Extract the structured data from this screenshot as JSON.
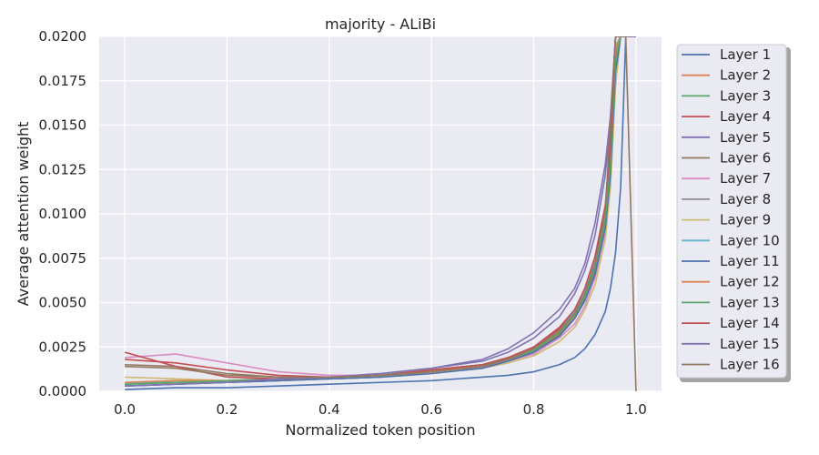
{
  "chart_data": {
    "type": "line",
    "title": "majority - ALiBi",
    "xlabel": "Normalized token position",
    "ylabel": "Average attention weight",
    "xlim": [
      -0.05,
      1.05
    ],
    "ylim": [
      0,
      0.02
    ],
    "xticks": [
      0.0,
      0.2,
      0.4,
      0.6,
      0.8,
      1.0
    ],
    "xtick_labels": [
      "0.0",
      "0.2",
      "0.4",
      "0.6",
      "0.8",
      "1.0"
    ],
    "yticks": [
      0,
      0.0025,
      0.005,
      0.0075,
      0.01,
      0.0125,
      0.015,
      0.0175,
      0.02
    ],
    "ytick_labels": [
      "0.0000",
      "0.0025",
      "0.0050",
      "0.0075",
      "0.0100",
      "0.0125",
      "0.0150",
      "0.0175",
      "0.0200"
    ],
    "grid": true,
    "legend_position": "outside-right",
    "x": [
      0.0,
      0.1,
      0.2,
      0.3,
      0.4,
      0.5,
      0.6,
      0.7,
      0.75,
      0.8,
      0.85,
      0.88,
      0.9,
      0.92,
      0.94,
      0.95,
      0.96,
      0.97,
      0.98,
      1.0
    ],
    "series": [
      {
        "name": "Layer 1",
        "color": "#4c72b0",
        "values": [
          0.0001,
          0.0002,
          0.0002,
          0.0003,
          0.0004,
          0.0005,
          0.0006,
          0.0008,
          0.0009,
          0.0011,
          0.0015,
          0.0019,
          0.0024,
          0.0032,
          0.0045,
          0.0058,
          0.0078,
          0.0115,
          0.02,
          0.02
        ]
      },
      {
        "name": "Layer 2",
        "color": "#dd8452",
        "values": [
          0.0005,
          0.0006,
          0.0006,
          0.0007,
          0.0008,
          0.0009,
          0.0011,
          0.0014,
          0.0018,
          0.0022,
          0.0032,
          0.0042,
          0.0052,
          0.0068,
          0.0095,
          0.0125,
          0.0185,
          0.02,
          0.02,
          0.02
        ]
      },
      {
        "name": "Layer 3",
        "color": "#55a868",
        "values": [
          0.0004,
          0.0005,
          0.0006,
          0.0007,
          0.0008,
          0.0009,
          0.0012,
          0.0015,
          0.0019,
          0.0024,
          0.0033,
          0.0044,
          0.0055,
          0.0072,
          0.0098,
          0.0132,
          0.019,
          0.02,
          0.02,
          0.02
        ]
      },
      {
        "name": "Layer 4",
        "color": "#c44e52",
        "values": [
          0.0018,
          0.0016,
          0.0012,
          0.0009,
          0.0008,
          0.0009,
          0.0012,
          0.0015,
          0.0019,
          0.0025,
          0.0035,
          0.0046,
          0.0058,
          0.0076,
          0.0105,
          0.014,
          0.02,
          0.02,
          0.02,
          0.02
        ]
      },
      {
        "name": "Layer 5",
        "color": "#8172b3",
        "values": [
          0.0003,
          0.0004,
          0.0005,
          0.0006,
          0.0008,
          0.001,
          0.0013,
          0.0017,
          0.0022,
          0.003,
          0.0042,
          0.0055,
          0.0068,
          0.0088,
          0.0122,
          0.015,
          0.02,
          0.02,
          0.02,
          0.02
        ]
      },
      {
        "name": "Layer 6",
        "color": "#937860",
        "values": [
          0.0015,
          0.0014,
          0.001,
          0.0008,
          0.0007,
          0.0008,
          0.001,
          0.0013,
          0.0017,
          0.0022,
          0.0032,
          0.0041,
          0.0052,
          0.0068,
          0.0098,
          0.0148,
          0.02,
          0.02,
          0.02,
          0.02
        ]
      },
      {
        "name": "Layer 7",
        "color": "#da8bc3",
        "values": [
          0.0019,
          0.0021,
          0.0016,
          0.0011,
          0.0009,
          0.0009,
          0.0011,
          0.0014,
          0.0017,
          0.0021,
          0.003,
          0.0038,
          0.0048,
          0.0064,
          0.009,
          0.0122,
          0.0182,
          0.02,
          0.02,
          0.02
        ]
      },
      {
        "name": "Layer 8",
        "color": "#8c8c8c",
        "values": [
          0.0004,
          0.0005,
          0.0005,
          0.0006,
          0.0007,
          0.0008,
          0.0011,
          0.0014,
          0.0018,
          0.0023,
          0.0033,
          0.0043,
          0.0054,
          0.007,
          0.0097,
          0.0128,
          0.0188,
          0.02,
          0.02,
          0.02
        ]
      },
      {
        "name": "Layer 9",
        "color": "#ccb974",
        "values": [
          0.0008,
          0.0007,
          0.0006,
          0.0006,
          0.0007,
          0.0008,
          0.001,
          0.0013,
          0.0016,
          0.002,
          0.0028,
          0.0036,
          0.0046,
          0.006,
          0.0086,
          0.0115,
          0.0172,
          0.02,
          0.02,
          0.02
        ]
      },
      {
        "name": "Layer 10",
        "color": "#64b5cd",
        "values": [
          0.0005,
          0.0005,
          0.0006,
          0.0007,
          0.0008,
          0.0009,
          0.0012,
          0.0015,
          0.0019,
          0.0024,
          0.0034,
          0.0045,
          0.0057,
          0.0074,
          0.0102,
          0.0135,
          0.0195,
          0.02,
          0.02,
          0.02
        ]
      },
      {
        "name": "Layer 11",
        "color": "#4c72b0",
        "values": [
          0.0003,
          0.0004,
          0.0005,
          0.0006,
          0.0007,
          0.0008,
          0.001,
          0.0013,
          0.0017,
          0.0022,
          0.0031,
          0.0041,
          0.0051,
          0.0066,
          0.0092,
          0.0122,
          0.018,
          0.02,
          0.02,
          0.02
        ]
      },
      {
        "name": "Layer 12",
        "color": "#dd8452",
        "values": [
          0.0005,
          0.0006,
          0.0006,
          0.0007,
          0.0008,
          0.0009,
          0.0011,
          0.0015,
          0.0018,
          0.0023,
          0.0033,
          0.0043,
          0.0054,
          0.0071,
          0.0099,
          0.0133,
          0.0193,
          0.02,
          0.02,
          0.02
        ]
      },
      {
        "name": "Layer 13",
        "color": "#55a868",
        "values": [
          0.0004,
          0.0005,
          0.0006,
          0.0007,
          0.0008,
          0.0009,
          0.0012,
          0.0015,
          0.0018,
          0.0023,
          0.0033,
          0.0043,
          0.0053,
          0.007,
          0.0097,
          0.0128,
          0.0187,
          0.02,
          0.02,
          0.02
        ]
      },
      {
        "name": "Layer 14",
        "color": "#c44e52",
        "values": [
          0.0022,
          0.0014,
          0.0008,
          0.0007,
          0.0008,
          0.0009,
          0.0012,
          0.0015,
          0.0019,
          0.0025,
          0.0036,
          0.0046,
          0.0058,
          0.0076,
          0.0104,
          0.0138,
          0.02,
          0.02,
          0.02,
          0.02
        ]
      },
      {
        "name": "Layer 15",
        "color": "#8172b3",
        "values": [
          0.0003,
          0.0004,
          0.0005,
          0.0007,
          0.0008,
          0.001,
          0.0013,
          0.0018,
          0.0024,
          0.0033,
          0.0046,
          0.0058,
          0.0072,
          0.0095,
          0.0128,
          0.0155,
          0.02,
          0.02,
          0.02,
          0.02
        ]
      },
      {
        "name": "Layer 16",
        "color": "#937860",
        "values": [
          0.0014,
          0.0013,
          0.0009,
          0.0008,
          0.0008,
          0.0009,
          0.0011,
          0.0014,
          0.0018,
          0.0024,
          0.0034,
          0.0044,
          0.0055,
          0.0072,
          0.0102,
          0.015,
          0.02,
          0.02,
          0.02,
          0.0
        ]
      }
    ]
  }
}
